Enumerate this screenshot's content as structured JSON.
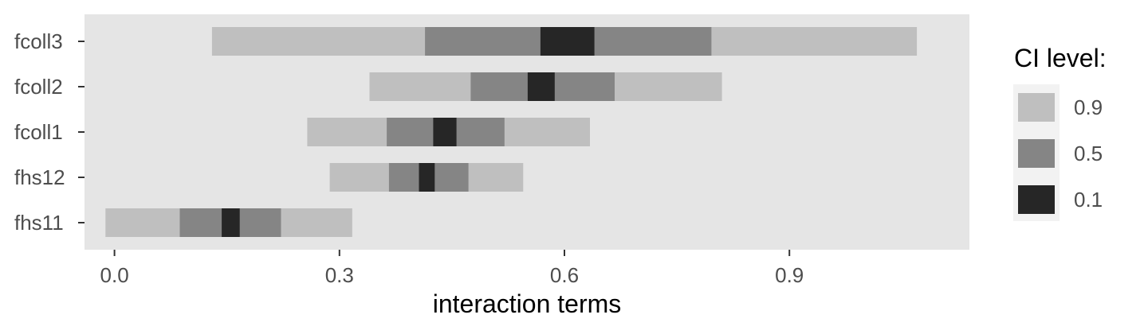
{
  "chart_data": {
    "type": "bar",
    "subtype": "interval",
    "categories": [
      "fcoll3",
      "fcoll2",
      "fcoll1",
      "fhs12",
      "fhs11"
    ],
    "xlabel": "interaction terms",
    "ylabel": "",
    "xlim": [
      -0.04,
      1.14
    ],
    "xticks": [
      0.0,
      0.3,
      0.6,
      0.9
    ],
    "xtick_labels": [
      "0.0",
      "0.3",
      "0.6",
      "0.9"
    ],
    "grid": false,
    "legend": {
      "title": "CI level:",
      "placement": "right",
      "levels": [
        "0.9",
        "0.5",
        "0.1"
      ]
    },
    "series": [
      {
        "name": "0.9",
        "color": "#bfbfbf",
        "intervals": [
          [
            0.13,
            1.07
          ],
          [
            0.34,
            0.81
          ],
          [
            0.257,
            0.634
          ],
          [
            0.287,
            0.545
          ],
          [
            -0.012,
            0.317
          ]
        ]
      },
      {
        "name": "0.5",
        "color": "#858585",
        "intervals": [
          [
            0.414,
            0.796
          ],
          [
            0.475,
            0.667
          ],
          [
            0.363,
            0.52
          ],
          [
            0.366,
            0.472
          ],
          [
            0.087,
            0.222
          ]
        ]
      },
      {
        "name": "0.1",
        "color": "#262626",
        "intervals": [
          [
            0.568,
            0.64
          ],
          [
            0.551,
            0.587
          ],
          [
            0.425,
            0.456
          ],
          [
            0.406,
            0.427
          ],
          [
            0.143,
            0.167
          ]
        ]
      }
    ],
    "colors": {
      "panel_background": "#e5e5e5",
      "legend_key_background": "#f2f2f2"
    }
  }
}
